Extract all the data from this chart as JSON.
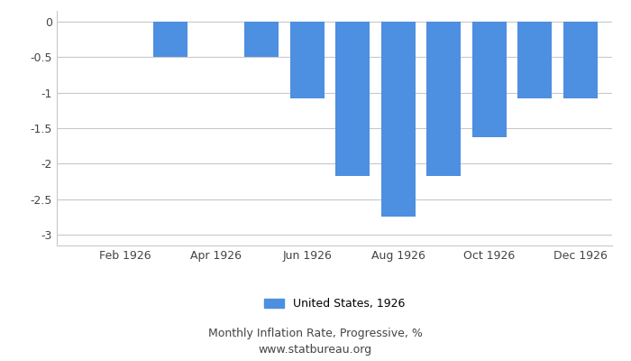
{
  "month_positions": [
    1,
    2,
    3,
    4,
    5,
    6,
    7,
    8,
    9,
    10,
    11,
    12
  ],
  "values": [
    0,
    0,
    -0.5,
    0,
    -0.5,
    -1.08,
    -2.17,
    -2.75,
    -2.17,
    -1.63,
    -1.08,
    -1.08
  ],
  "bar_color": "#4d8fe0",
  "background_color": "#ffffff",
  "grid_color": "#c8c8c8",
  "ylim": [
    -3.15,
    0.15
  ],
  "yticks": [
    0,
    -0.5,
    -1,
    -1.5,
    -2,
    -2.5,
    -3
  ],
  "ytick_labels": [
    "0",
    "-0.5",
    "-1",
    "-1.5",
    "-2",
    "-2.5",
    "-3"
  ],
  "xtick_labels": [
    "Feb 1926",
    "Apr 1926",
    "Jun 1926",
    "Aug 1926",
    "Oct 1926",
    "Dec 1926"
  ],
  "xtick_positions": [
    2,
    4,
    6,
    8,
    10,
    12
  ],
  "title": "Monthly Inflation Rate, Progressive, %",
  "subtitle": "www.statbureau.org",
  "legend_label": "United States, 1926",
  "bar_width": 0.75,
  "title_fontsize": 9,
  "tick_fontsize": 9,
  "legend_fontsize": 9,
  "text_color": "#444444"
}
